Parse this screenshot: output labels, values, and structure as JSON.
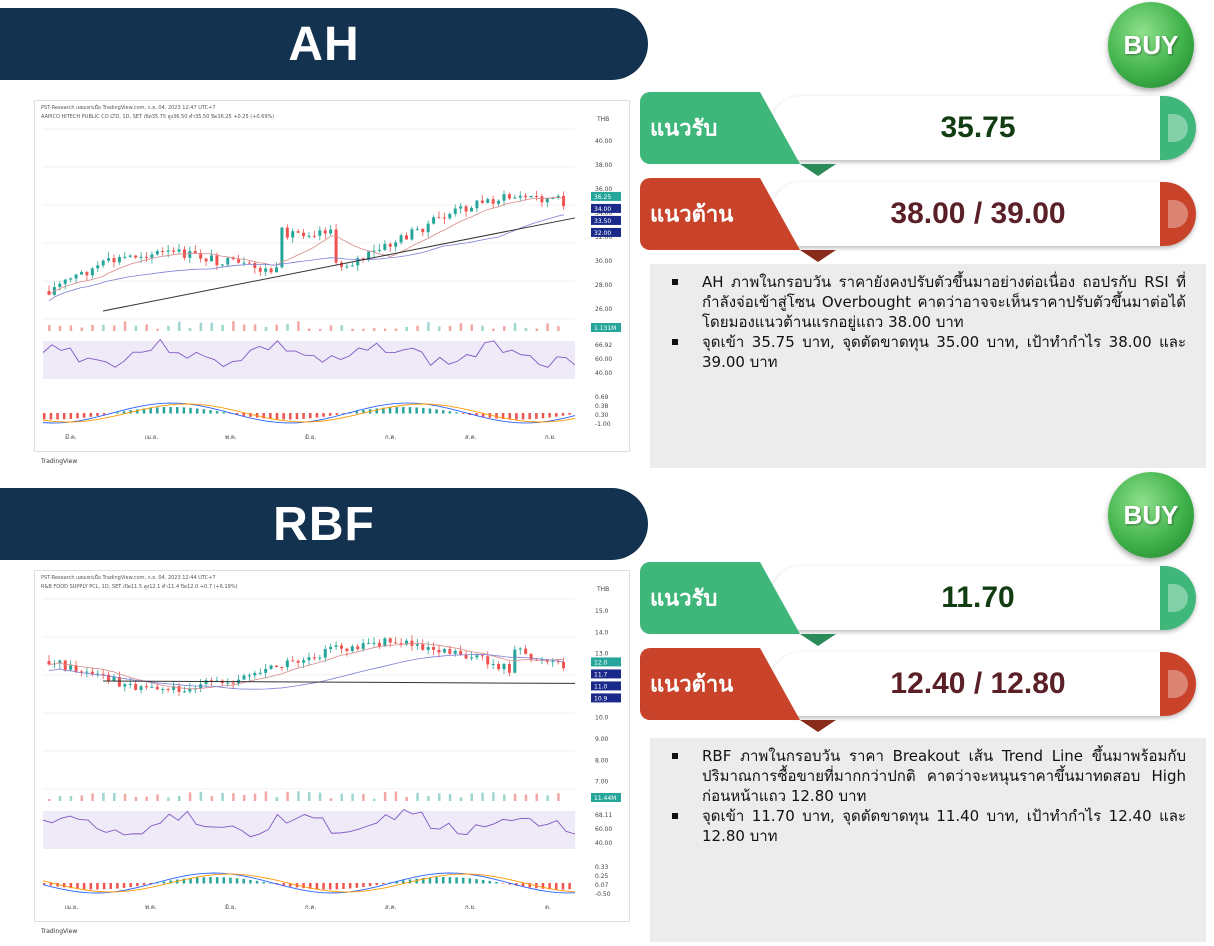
{
  "sections": [
    {
      "ticker": "AH",
      "signal": "BUY",
      "support_label": "แนวรับ",
      "support_value": "35.75",
      "resistance_label": "แนวต้าน",
      "resistance_value": "38.00 / 39.00",
      "bullets": [
        "AH ภาพในกรอบวัน ราคายังคงปรับตัวขึ้นมาอย่างต่อเนื่อง ถอปรกับ RSI ที่กำลังจ่อเข้าสู่โซน Overbought คาดว่าอาจจะเห็นราคาปรับตัวขึ้นมาต่อได้โดยมองแนวต้านแรกอยู่แถว 38.00 บาท",
        "จุดเข้า 35.75 บาท, จุดตัดขาดทุน 35.00 บาท, เป้าทำกำไร 38.00 และ 39.00 บาท"
      ],
      "chart": {
        "source_line": "PST-Research เผยแพร่เมื่อ TradingView.com, ก.ย. 04, 2023 12:47 UTC+7",
        "title_line": "AAPICO HITECH PUBLIC CO LTD, 1D, SET  เปิด35.75 สูง36.50 ต่ำ35.50 ปิด36.25 +0.25 (+0.69%)",
        "currency": "THB",
        "price_ticks": [
          "40.00",
          "38.00",
          "36.00",
          "34.00",
          "32.00",
          "30.00",
          "28.00",
          "26.00"
        ],
        "price_tags": [
          "36.25",
          "34.00",
          "33.50",
          "32.00"
        ],
        "rsi_ticks": [
          "66.92",
          "60.00",
          "40.00"
        ],
        "macd_ticks": [
          "0.69",
          "0.38",
          "0.30",
          "-1.00"
        ],
        "volume_tag": "1.131M",
        "x_labels": [
          "มี.ค.",
          "เม.ย.",
          "พ.ค.",
          "มิ.ย.",
          "ก.ค.",
          "ส.ค.",
          "ก.ย."
        ],
        "footer": "TradingView"
      }
    },
    {
      "ticker": "RBF",
      "signal": "BUY",
      "support_label": "แนวรับ",
      "support_value": "11.70",
      "resistance_label": "แนวต้าน",
      "resistance_value": "12.40 / 12.80",
      "bullets": [
        "RBF ภาพในกรอบวัน ราคา Breakout เส้น Trend Line ขึ้นมาพร้อมกับ ปริมาณการซื้อขายที่มากกว่าปกติ คาดว่าจะหนุนราคาขึ้นมาทดสอบ High ก่อนหน้าแถว 12.80 บาท",
        "จุดเข้า 11.70 บาท, จุดตัดขาดทุน 11.40 บาท, เป้าทำกำไร 12.40 และ 12.80 บาท"
      ],
      "chart": {
        "source_line": "PST-Research เผยแพร่เมื่อ TradingView.com, ก.ย. 04, 2023 12:44 UTC+7",
        "title_line": "R&B FOOD SUPPLY PCL, 1D, SET  เปิด11.5 สูง12.1 ต่ำ11.4 ปิด12.0 +0.7 (+6.19%)",
        "currency": "THB",
        "price_ticks": [
          "15.0",
          "14.0",
          "13.0",
          "12.0",
          "11.0",
          "10.0",
          "9.00",
          "8.00",
          "7.00"
        ],
        "price_tags": [
          "12.0",
          "11.7",
          "11.0",
          "10.9"
        ],
        "rsi_ticks": [
          "68.11",
          "60.00",
          "40.00"
        ],
        "macd_ticks": [
          "0.33",
          "0.25",
          "0.07",
          "-0.50"
        ],
        "volume_tag": "11.44M",
        "x_labels": [
          "เม.ย.",
          "พ.ค.",
          "มิ.ย.",
          "ก.ค.",
          "ส.ค.",
          "ก.ย.",
          "ต."
        ],
        "footer": "TradingView"
      }
    }
  ],
  "colors": {
    "banner": "#12324f",
    "support": "#3fb67a",
    "resistance": "#c8432a",
    "buy": "#3fb24a",
    "up_candle": "#26a69a",
    "down_candle": "#ef5350"
  }
}
